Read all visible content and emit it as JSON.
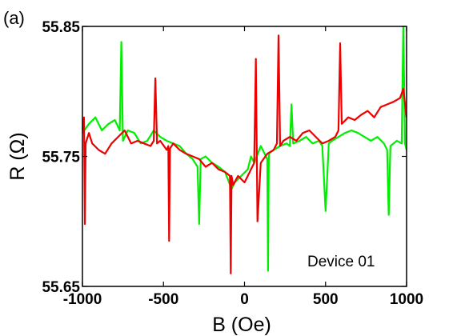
{
  "panel_label": "(a)",
  "annotation": "Device 01",
  "chart_data": {
    "type": "line",
    "title": "",
    "xlabel": "B (Oe)",
    "ylabel": "R (Ω)",
    "xlim": [
      -1000,
      1000
    ],
    "ylim": [
      55.65,
      55.85
    ],
    "xticks": [
      -1000,
      -500,
      0,
      500,
      1000
    ],
    "xtick_labels": [
      "-1000",
      "-500",
      "0",
      "500",
      "1000"
    ],
    "yticks": [
      55.65,
      55.75,
      55.85
    ],
    "ytick_labels": [
      "55.65",
      "55.75",
      "55.85"
    ],
    "grid": false,
    "legend": "none",
    "series": [
      {
        "color": "#00ee00",
        "x": [
          -1000,
          -960,
          -920,
          -880,
          -840,
          -800,
          -770,
          -760,
          -750,
          -720,
          -680,
          -640,
          -600,
          -560,
          -520,
          -480,
          -440,
          -400,
          -360,
          -320,
          -290,
          -280,
          -270,
          -240,
          -200,
          -160,
          -120,
          -80,
          -60,
          -20,
          20,
          40,
          60,
          100,
          140,
          145,
          150,
          180,
          220,
          260,
          280,
          290,
          300,
          340,
          380,
          420,
          460,
          480,
          500,
          520,
          540,
          580,
          620,
          660,
          700,
          740,
          780,
          820,
          860,
          880,
          890,
          900,
          940,
          970,
          980,
          990,
          1000
        ],
        "y": [
          55.768,
          55.775,
          55.78,
          55.77,
          55.775,
          55.778,
          55.77,
          55.838,
          55.762,
          55.77,
          55.768,
          55.76,
          55.762,
          55.77,
          55.765,
          55.762,
          55.76,
          55.758,
          55.752,
          55.748,
          55.742,
          55.698,
          55.748,
          55.75,
          55.745,
          55.742,
          55.738,
          55.725,
          55.73,
          55.735,
          55.74,
          55.75,
          55.745,
          55.758,
          55.748,
          55.662,
          55.752,
          55.755,
          55.758,
          55.76,
          55.758,
          55.79,
          55.76,
          55.762,
          55.765,
          55.76,
          55.762,
          55.758,
          55.708,
          55.76,
          55.762,
          55.765,
          55.768,
          55.77,
          55.768,
          55.765,
          55.762,
          55.765,
          55.76,
          55.755,
          55.705,
          55.758,
          55.762,
          55.76,
          55.85,
          55.76,
          55.755
        ]
      },
      {
        "color": "#ee0000",
        "x": [
          -1000,
          -990,
          -985,
          -980,
          -960,
          -940,
          -900,
          -860,
          -820,
          -780,
          -740,
          -700,
          -660,
          -620,
          -580,
          -560,
          -550,
          -540,
          -520,
          -480,
          -470,
          -465,
          -460,
          -440,
          -400,
          -360,
          -320,
          -280,
          -240,
          -200,
          -160,
          -120,
          -90,
          -85,
          -80,
          -70,
          -40,
          0,
          20,
          40,
          60,
          70,
          80,
          100,
          140,
          180,
          200,
          210,
          220,
          240,
          280,
          320,
          360,
          400,
          440,
          480,
          520,
          560,
          580,
          590,
          600,
          640,
          680,
          720,
          760,
          800,
          840,
          880,
          920,
          960,
          980,
          1000
        ],
        "y": [
          55.77,
          55.78,
          55.698,
          55.76,
          55.768,
          55.76,
          55.755,
          55.752,
          55.76,
          55.765,
          55.77,
          55.76,
          55.762,
          55.76,
          55.758,
          55.762,
          55.81,
          55.76,
          55.762,
          55.755,
          55.758,
          55.685,
          55.756,
          55.76,
          55.755,
          55.752,
          55.75,
          55.748,
          55.742,
          55.745,
          55.74,
          55.738,
          55.735,
          55.66,
          55.735,
          55.728,
          55.735,
          55.73,
          55.735,
          55.74,
          55.745,
          55.825,
          55.7,
          55.745,
          55.752,
          55.755,
          55.76,
          55.843,
          55.758,
          55.762,
          55.765,
          55.762,
          55.768,
          55.77,
          55.765,
          55.76,
          55.762,
          55.765,
          55.77,
          55.837,
          55.775,
          55.78,
          55.778,
          55.782,
          55.785,
          55.78,
          55.788,
          55.79,
          55.792,
          55.795,
          55.802,
          55.78
        ]
      }
    ]
  }
}
